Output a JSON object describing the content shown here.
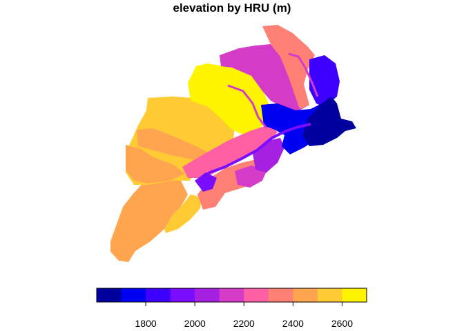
{
  "title": "elevation by HRU (m)",
  "legend": {
    "colors": [
      "#00009C",
      "#0000F2",
      "#3D00FF",
      "#7A0DFF",
      "#A520E0",
      "#D43CC8",
      "#FF5FA3",
      "#FF8075",
      "#FFA550",
      "#FFCB35",
      "#FFF400"
    ],
    "range": [
      1600,
      2700
    ],
    "ticks": [
      1800,
      2000,
      2200,
      2400,
      2600
    ]
  }
}
